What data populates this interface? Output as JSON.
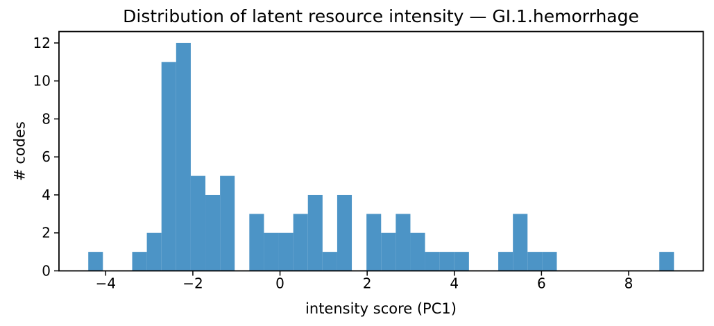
{
  "chart_data": {
    "type": "bar",
    "subtype": "histogram",
    "title": "Distribution of latent resource intensity — GI.1.hemorrhage",
    "xlabel": "intensity score (PC1)",
    "ylabel": "# codes",
    "bin_edges": [
      -4.4,
      -4.064,
      -3.728,
      -3.392,
      -3.056,
      -2.72,
      -2.384,
      -2.048,
      -1.712,
      -1.376,
      -1.04,
      -0.704,
      -0.368,
      -0.032,
      0.304,
      0.64,
      0.976,
      1.312,
      1.648,
      1.984,
      2.32,
      2.656,
      2.992,
      3.328,
      3.664,
      4.0,
      4.336,
      4.672,
      5.008,
      5.344,
      5.68,
      6.016,
      6.352,
      6.688,
      7.024,
      7.36,
      7.696,
      8.032,
      8.368,
      8.704,
      9.04
    ],
    "counts": [
      1,
      0,
      0,
      1,
      2,
      11,
      12,
      5,
      4,
      5,
      0,
      3,
      2,
      2,
      3,
      4,
      1,
      4,
      0,
      3,
      2,
      3,
      2,
      1,
      1,
      1,
      0,
      0,
      1,
      3,
      1,
      1,
      0,
      0,
      0,
      0,
      0,
      0,
      0,
      1
    ],
    "xticks": [
      -4,
      -2,
      0,
      2,
      4,
      6,
      8
    ],
    "yticks": [
      0,
      2,
      4,
      6,
      8,
      10,
      12
    ],
    "xlim": [
      -5.072,
      9.712
    ],
    "ylim": [
      0,
      12.6
    ],
    "grid": false,
    "legend": false,
    "bar_color": "#4c94c6",
    "axis_color": "#000000"
  }
}
